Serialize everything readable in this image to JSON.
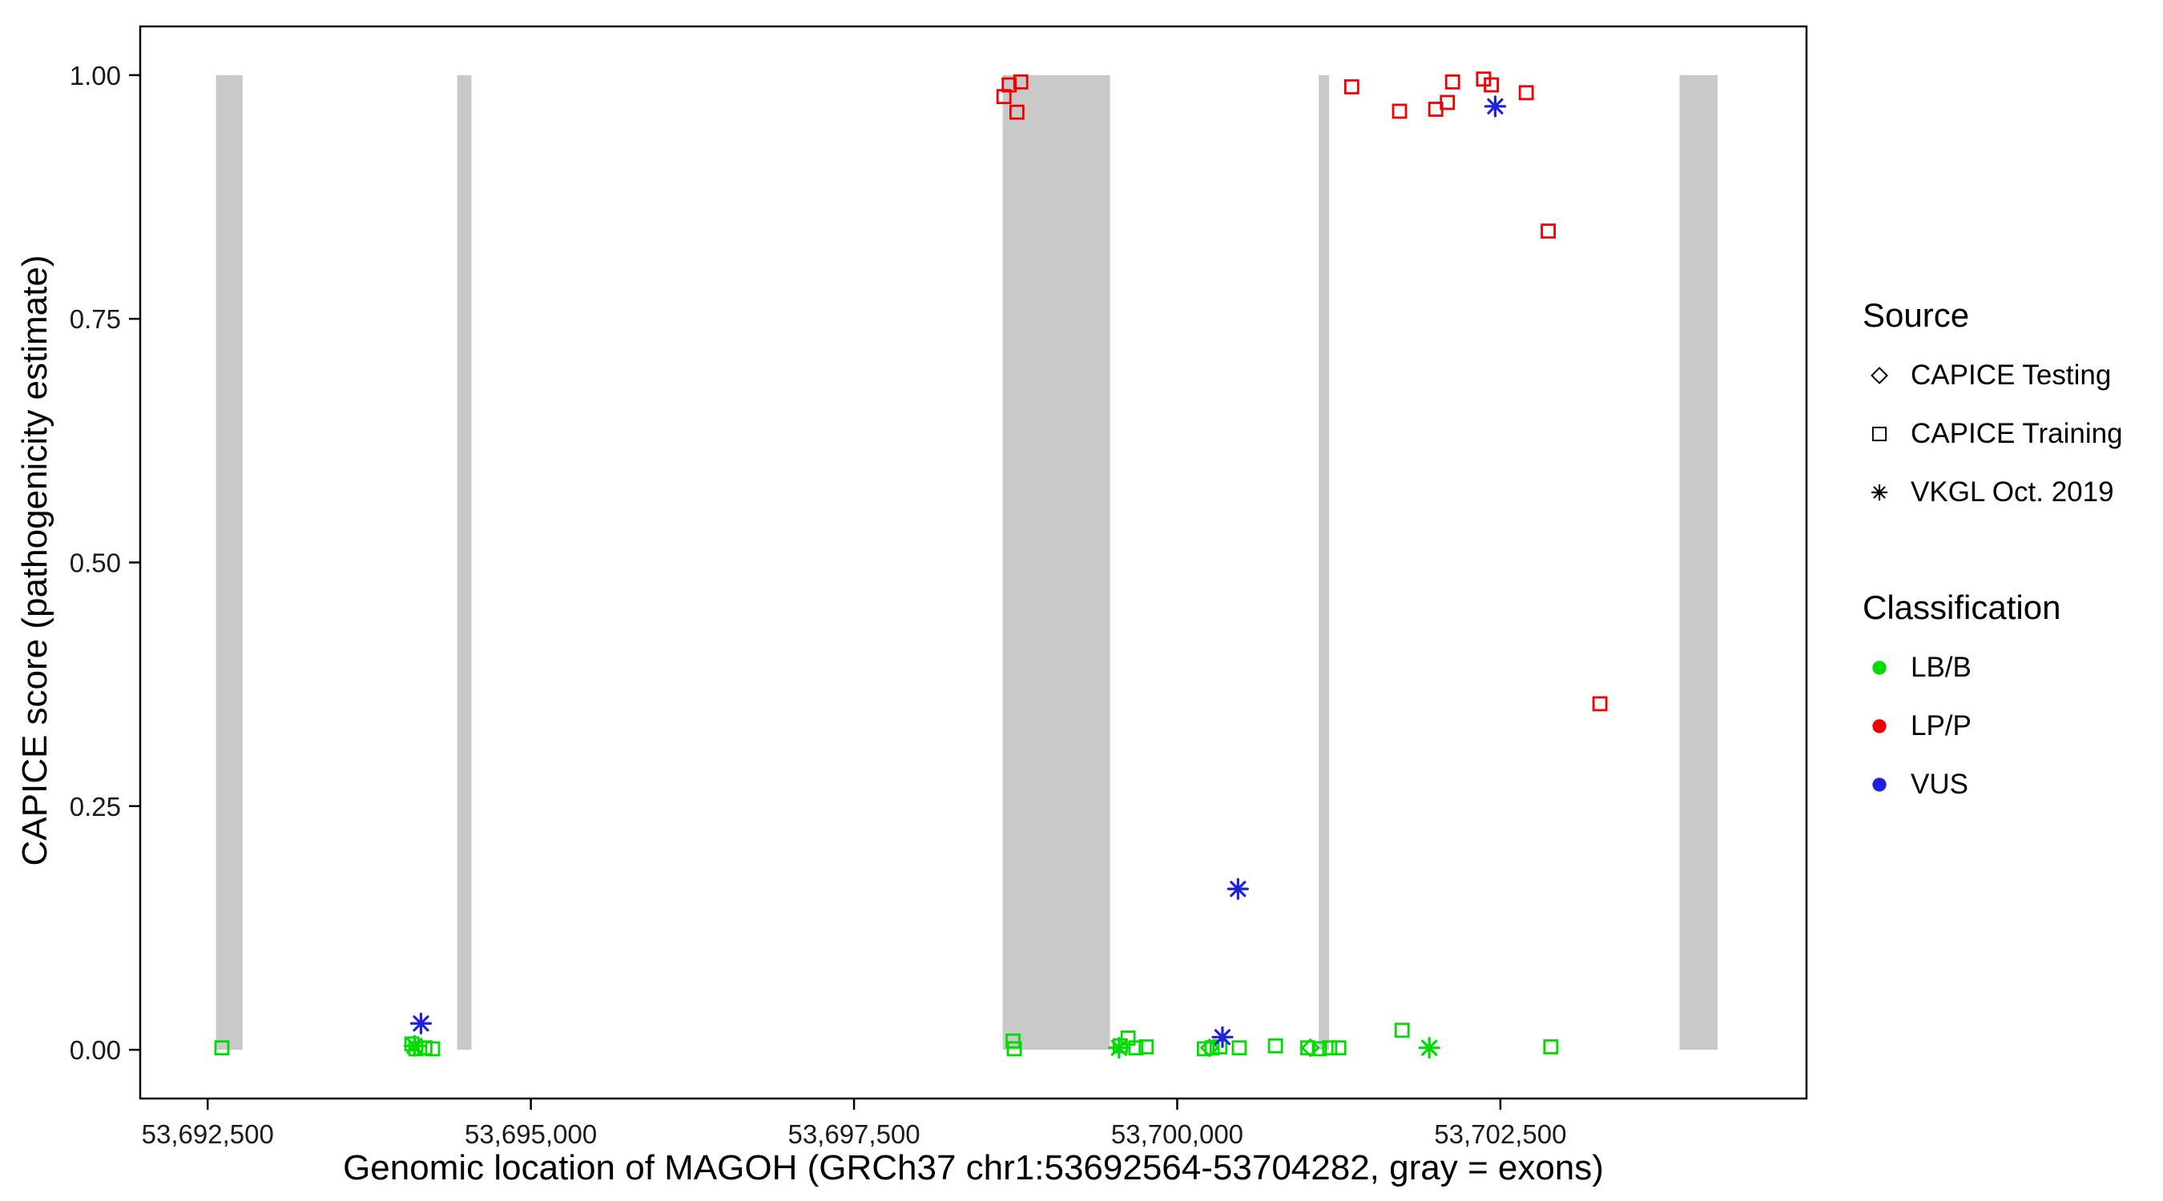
{
  "chart_data": {
    "type": "scatter",
    "title": "",
    "xlabel": "Genomic location of MAGOH (GRCh37 chr1:53692564-53704282, gray = exons)",
    "ylabel": "CAPICE score (pathogenicity estimate)",
    "xlim": [
      53691978,
      53704868
    ],
    "ylim": [
      -0.05,
      1.05
    ],
    "grid": false,
    "x_ticks": [
      {
        "value": 53692500,
        "label": "53,692,500"
      },
      {
        "value": 53695000,
        "label": "53,695,000"
      },
      {
        "value": 53697500,
        "label": "53,697,500"
      },
      {
        "value": 53700000,
        "label": "53,700,000"
      },
      {
        "value": 53702500,
        "label": "53,702,500"
      }
    ],
    "y_ticks": [
      {
        "value": 0.0,
        "label": "0.00"
      },
      {
        "value": 0.25,
        "label": "0.25"
      },
      {
        "value": 0.5,
        "label": "0.50"
      },
      {
        "value": 0.75,
        "label": "0.75"
      },
      {
        "value": 1.0,
        "label": "1.00"
      }
    ],
    "exon_color": "#C9C9C9",
    "exons": [
      {
        "start": 53692564,
        "end": 53692770
      },
      {
        "start": 53694430,
        "end": 53694540
      },
      {
        "start": 53698650,
        "end": 53699480
      },
      {
        "start": 53701095,
        "end": 53701175
      },
      {
        "start": 53703886,
        "end": 53704180
      }
    ],
    "series": [
      {
        "name": "CAPICE Training — LP/P",
        "source": "CAPICE Training",
        "classification": "LP/P",
        "shape": "square",
        "color": "#F00000",
        "points": [
          [
            53698660,
            0.978
          ],
          [
            53698700,
            0.99
          ],
          [
            53698790,
            0.993
          ],
          [
            53698760,
            0.962
          ],
          [
            53701350,
            0.988
          ],
          [
            53701720,
            0.963
          ],
          [
            53702000,
            0.965
          ],
          [
            53702090,
            0.972
          ],
          [
            53702130,
            0.993
          ],
          [
            53702370,
            0.996
          ],
          [
            53702430,
            0.99
          ],
          [
            53702700,
            0.982
          ],
          [
            53702870,
            0.84
          ],
          [
            53703270,
            0.355
          ]
        ]
      },
      {
        "name": "CAPICE Training — LB/B",
        "source": "CAPICE Training",
        "classification": "LB/B",
        "shape": "square",
        "color": "#00DC00",
        "points": [
          [
            53692610,
            0.002
          ],
          [
            53694080,
            0.006
          ],
          [
            53694110,
            0.001
          ],
          [
            53694180,
            0.002
          ],
          [
            53694240,
            0.001
          ],
          [
            53698730,
            0.009
          ],
          [
            53698740,
            0.001
          ],
          [
            53699560,
            0.004
          ],
          [
            53699620,
            0.012
          ],
          [
            53699680,
            0.002
          ],
          [
            53699760,
            0.003
          ],
          [
            53700210,
            0.001
          ],
          [
            53700270,
            0.002
          ],
          [
            53700330,
            0.003
          ],
          [
            53700480,
            0.002
          ],
          [
            53700760,
            0.004
          ],
          [
            53701010,
            0.002
          ],
          [
            53701100,
            0.001
          ],
          [
            53701180,
            0.002
          ],
          [
            53701250,
            0.002
          ],
          [
            53701740,
            0.02
          ],
          [
            53702890,
            0.003
          ]
        ]
      },
      {
        "name": "CAPICE Testing — LB/B",
        "source": "CAPICE Testing",
        "classification": "LB/B",
        "shape": "diamond",
        "color": "#00DC00",
        "points": [
          [
            53700250,
            0.002
          ],
          [
            53701030,
            0.002
          ]
        ]
      },
      {
        "name": "VKGL Oct. 2019 — LB/B",
        "source": "VKGL Oct. 2019",
        "classification": "LB/B",
        "shape": "asterisk",
        "color": "#00DC00",
        "points": [
          [
            53694100,
            0.004
          ],
          [
            53699550,
            0.002
          ],
          [
            53701950,
            0.002
          ]
        ]
      },
      {
        "name": "VKGL Oct. 2019 — VUS",
        "source": "VKGL Oct. 2019",
        "classification": "VUS",
        "shape": "asterisk",
        "color": "#2020E0",
        "points": [
          [
            53694150,
            0.027
          ],
          [
            53700350,
            0.013
          ],
          [
            53700470,
            0.165
          ],
          [
            53702460,
            0.968
          ]
        ]
      }
    ],
    "legend": {
      "source": {
        "title": "Source",
        "items": [
          {
            "shape": "diamond",
            "label": "CAPICE Testing"
          },
          {
            "shape": "square",
            "label": "CAPICE Training"
          },
          {
            "shape": "asterisk",
            "label": "VKGL Oct. 2019"
          }
        ]
      },
      "classification": {
        "title": "Classification",
        "items": [
          {
            "color": "#00DC00",
            "label": "LB/B"
          },
          {
            "color": "#F00000",
            "label": "LP/P"
          },
          {
            "color": "#2020E0",
            "label": "VUS"
          }
        ]
      }
    }
  }
}
